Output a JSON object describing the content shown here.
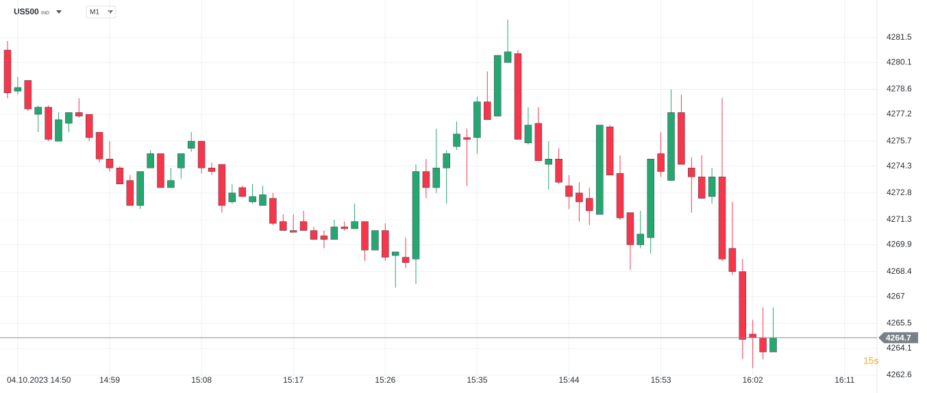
{
  "toolbar": {
    "symbol": "US500",
    "instrument_type": "IND",
    "timeframe": "M1"
  },
  "chart_data": {
    "type": "candlestick",
    "up_color": "#26a671",
    "down_color": "#f5364b",
    "grid": true,
    "ylim": [
      4262.6,
      4283.6
    ],
    "yticks": [
      4281.5,
      4280.1,
      4278.6,
      4277.2,
      4275.7,
      4274.3,
      4272.8,
      4271.3,
      4269.9,
      4268.4,
      4267.0,
      4265.5,
      4264.1,
      4262.6
    ],
    "xticks": [
      {
        "value": 1,
        "label": "04.10.2023 14:50"
      },
      {
        "value": 10,
        "label": "14:59"
      },
      {
        "value": 19,
        "label": "15:08"
      },
      {
        "value": 28,
        "label": "15:17"
      },
      {
        "value": 37,
        "label": "15:26"
      },
      {
        "value": 46,
        "label": "15:35"
      },
      {
        "value": 55,
        "label": "15:44"
      },
      {
        "value": 64,
        "label": "15:53"
      },
      {
        "value": 73,
        "label": "16:02"
      },
      {
        "value": 82,
        "label": "16:11"
      }
    ],
    "current_price": 4264.7,
    "countdown": "15s",
    "open": [
      4280.8,
      4278.5,
      4279.1,
      4277.2,
      4277.6,
      4275.7,
      4276.7,
      4277.3,
      4277.2,
      4276.2,
      4274.7,
      4274.2,
      4273.5,
      4272.1,
      4274.2,
      4275.0,
      4273.1,
      4274.2,
      4275.3,
      4275.7,
      4274.2,
      4274.4,
      4272.3,
      4273.1,
      4272.3,
      4272.1,
      4272.5,
      4271.2,
      4270.7,
      4271.2,
      4270.7,
      4270.4,
      4270.2,
      4270.9,
      4270.8,
      4271.2,
      4269.6,
      4270.7,
      4269.3,
      4269.2,
      4269.1,
      4274.0,
      4273.1,
      4274.2,
      4275.4,
      4275.9,
      4275.9,
      4277.9,
      4277.1,
      4280.1,
      4280.6,
      4275.6,
      4276.7,
      4274.4,
      4274.7,
      4273.2,
      4272.8,
      4272.5,
      4271.6,
      4276.5,
      4273.9,
      4271.7,
      4269.9,
      4270.3,
      4275.0,
      4273.5,
      4277.3,
      4274.2,
      4273.7,
      4272.6,
      4273.7,
      4269.7,
      4268.4,
      4264.9,
      4264.7,
      4263.9
    ],
    "high": [
      4281.3,
      4279.3,
      4279.1,
      4277.7,
      4277.7,
      4277.3,
      4277.3,
      4278.1,
      4277.2,
      4276.2,
      4275.7,
      4274.3,
      4273.8,
      4274.0,
      4275.2,
      4275.0,
      4274.2,
      4275.0,
      4276.2,
      4275.7,
      4274.5,
      4274.4,
      4273.3,
      4273.2,
      4273.3,
      4273.2,
      4272.8,
      4271.6,
      4271.6,
      4271.8,
      4270.9,
      4270.7,
      4271.3,
      4271.2,
      4272.2,
      4271.2,
      4270.7,
      4271.1,
      4269.5,
      4270.3,
      4274.4,
      4274.7,
      4276.4,
      4275.2,
      4276.8,
      4276.4,
      4278.2,
      4279.6,
      4280.5,
      4282.5,
      4280.8,
      4277.6,
      4277.6,
      4275.7,
      4275.3,
      4273.8,
      4273.4,
      4273.1,
      4276.6,
      4276.6,
      4274.9,
      4271.7,
      4271.8,
      4274.7,
      4276.2,
      4278.6,
      4278.3,
      4274.8,
      4274.9,
      4274.2,
      4278.1,
      4272.3,
      4269.1,
      4265.7,
      4266.4,
      4266.4
    ],
    "low": [
      4278.1,
      4278.3,
      4277.4,
      4276.2,
      4275.7,
      4275.7,
      4276.2,
      4277.0,
      4275.7,
      4274.5,
      4274.0,
      4273.3,
      4272.1,
      4271.9,
      4274.2,
      4273.1,
      4273.1,
      4273.6,
      4275.1,
      4273.9,
      4273.8,
      4271.7,
      4272.2,
      4272.6,
      4272.2,
      4272.1,
      4271.0,
      4270.7,
      4270.6,
      4270.7,
      4270.2,
      4269.7,
      4270.2,
      4270.7,
      4270.8,
      4269.0,
      4269.6,
      4269.0,
      4267.5,
      4268.6,
      4267.7,
      4272.5,
      4272.8,
      4272.2,
      4275.2,
      4273.2,
      4275.0,
      4276.9,
      4277.1,
      4280.1,
      4275.8,
      4275.5,
      4274.6,
      4273.0,
      4273.3,
      4271.9,
      4271.2,
      4271.0,
      4271.6,
      4273.8,
      4271.3,
      4268.5,
      4269.7,
      4269.4,
      4273.7,
      4273.5,
      4274.4,
      4271.7,
      4272.5,
      4272.2,
      4269.0,
      4268.2,
      4263.5,
      4263.0,
      4263.5,
      4263.9
    ],
    "close": [
      4278.4,
      4278.7,
      4277.5,
      4277.6,
      4275.8,
      4276.9,
      4277.3,
      4277.1,
      4275.9,
      4274.7,
      4274.2,
      4273.3,
      4272.1,
      4274.0,
      4275.0,
      4273.1,
      4273.5,
      4275.0,
      4275.7,
      4274.2,
      4274.0,
      4272.1,
      4272.8,
      4272.6,
      4272.6,
      4272.7,
      4271.1,
      4270.7,
      4270.6,
      4270.7,
      4270.2,
      4270.2,
      4270.9,
      4270.8,
      4271.2,
      4269.6,
      4270.7,
      4269.2,
      4269.5,
      4268.9,
      4274.0,
      4273.1,
      4274.2,
      4275.0,
      4276.1,
      4275.8,
      4277.9,
      4276.9,
      4280.5,
      4280.7,
      4275.8,
      4276.6,
      4274.6,
      4274.7,
      4273.4,
      4272.6,
      4272.3,
      4271.8,
      4276.6,
      4273.8,
      4271.4,
      4269.9,
      4270.5,
      4274.7,
      4274.0,
      4277.3,
      4274.4,
      4273.7,
      4272.5,
      4273.7,
      4269.1,
      4268.4,
      4264.6,
      4264.7,
      4263.9,
      4264.7
    ]
  }
}
